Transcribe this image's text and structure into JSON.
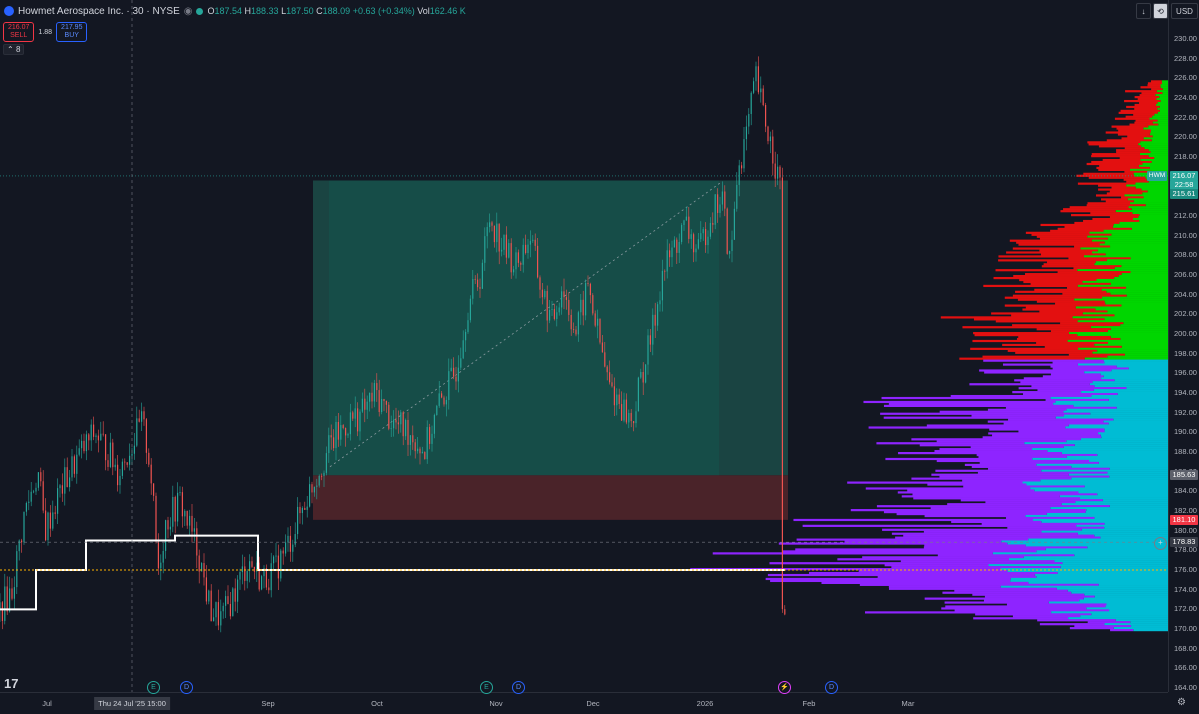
{
  "header": {
    "symbol_title": "Howmet Aerospace Inc. · 30 · NYSE",
    "ohlc": [
      {
        "k": "O",
        "v": "187.54"
      },
      {
        "k": "H",
        "v": "188.33"
      },
      {
        "k": "L",
        "v": "187.50"
      },
      {
        "k": "C",
        "v": "188.09"
      },
      {
        "k": "",
        "v": "+0.63 (+0.34%)"
      },
      {
        "k": "Vol",
        "v": "162.46 K"
      }
    ]
  },
  "trade": {
    "sell_price": "216.07",
    "sell_label": "SELL",
    "spread": "1.88",
    "buy_price": "217.95",
    "buy_label": "BUY"
  },
  "indicator_counter": "8",
  "top_right": {
    "currency": "USD"
  },
  "price_axis": {
    "ticks": [
      "230.00",
      "228.00",
      "226.00",
      "224.00",
      "222.00",
      "220.00",
      "218.00",
      "216.00",
      "214.00",
      "212.00",
      "210.00",
      "208.00",
      "206.00",
      "204.00",
      "202.00",
      "200.00",
      "198.00",
      "196.00",
      "194.00",
      "192.00",
      "190.00",
      "188.00",
      "186.00",
      "184.00",
      "182.00",
      "180.00",
      "178.00",
      "176.00",
      "174.00",
      "172.00",
      "170.00",
      "168.00",
      "166.00",
      "164.00"
    ],
    "symbol_badge": "HWM",
    "last_price": "216.07",
    "countdown": "22:58",
    "target_price": "215.61",
    "entry_price": "185.63",
    "stop_price": "181.10",
    "crosshair_price": "178.83"
  },
  "time_axis": {
    "labels": [
      "Jul",
      "Sep",
      "Oct",
      "Nov",
      "Dec",
      "2026",
      "Feb",
      "Mar"
    ],
    "crosshair_time": "Thu 24 Jul '25   15:00"
  },
  "events": [
    {
      "t": "E",
      "icon": "earnings-icon"
    },
    {
      "t": "D",
      "icon": "dividend-icon"
    },
    {
      "t": "E",
      "icon": "earnings-icon"
    },
    {
      "t": "D",
      "icon": "dividend-icon"
    },
    {
      "t": "⚡",
      "icon": "split-icon"
    },
    {
      "t": "D",
      "icon": "dividend-icon"
    }
  ],
  "colors": {
    "bg": "#131722",
    "up": "#26a69a",
    "down": "#ef5350",
    "profit_zone": "#1b4a45",
    "loss_zone": "#4a2329",
    "vp_up": "#00bcd4",
    "vp_down": "#8e24ff",
    "vp_up2": "#00d600",
    "vp_down2": "#e31010",
    "poc": "#ffb300"
  },
  "chart_data": {
    "type": "candlestick",
    "ylim": [
      163,
      231
    ],
    "x_months": [
      "Jul",
      "Sep",
      "Oct",
      "Nov",
      "Dec",
      "2026",
      "Feb",
      "Mar"
    ],
    "price_path": [
      [
        0,
        172
      ],
      [
        12,
        174
      ],
      [
        25,
        182
      ],
      [
        38,
        186
      ],
      [
        45,
        180
      ],
      [
        60,
        184
      ],
      [
        75,
        187
      ],
      [
        95,
        190
      ],
      [
        108,
        188
      ],
      [
        118,
        186
      ],
      [
        128,
        188
      ],
      [
        142,
        191
      ],
      [
        150,
        187
      ],
      [
        158,
        176
      ],
      [
        166,
        181
      ],
      [
        180,
        183
      ],
      [
        198,
        178
      ],
      [
        210,
        172
      ],
      [
        222,
        171
      ],
      [
        236,
        174
      ],
      [
        248,
        177
      ],
      [
        262,
        175
      ],
      [
        275,
        176
      ],
      [
        290,
        179
      ],
      [
        305,
        183
      ],
      [
        318,
        186
      ],
      [
        332,
        189
      ],
      [
        348,
        191
      ],
      [
        362,
        192
      ],
      [
        376,
        194
      ],
      [
        392,
        191
      ],
      [
        410,
        190
      ],
      [
        424,
        188
      ],
      [
        440,
        193
      ],
      [
        455,
        196
      ],
      [
        468,
        203
      ],
      [
        480,
        206
      ],
      [
        490,
        212
      ],
      [
        502,
        209
      ],
      [
        516,
        207
      ],
      [
        530,
        210
      ],
      [
        540,
        205
      ],
      [
        552,
        201
      ],
      [
        562,
        205
      ],
      [
        576,
        200
      ],
      [
        588,
        205
      ],
      [
        598,
        200
      ],
      [
        608,
        195
      ],
      [
        620,
        193
      ],
      [
        632,
        191
      ],
      [
        642,
        196
      ],
      [
        652,
        200
      ],
      [
        662,
        206
      ],
      [
        675,
        209
      ],
      [
        686,
        211
      ],
      [
        698,
        208
      ],
      [
        710,
        212
      ],
      [
        722,
        214
      ],
      [
        730,
        207
      ],
      [
        738,
        217
      ],
      [
        746,
        220
      ],
      [
        756,
        226
      ],
      [
        764,
        222
      ],
      [
        772,
        219
      ],
      [
        780,
        215
      ]
    ],
    "position": {
      "entry": 185.63,
      "target": 215.61,
      "stop": 181.1,
      "x_start": 313,
      "x_end": 788
    },
    "poc": 176.0,
    "volume_profile_levels": [
      {
        "price": 226,
        "up": 5,
        "down": 18
      },
      {
        "price": 222,
        "up": 15,
        "down": 30
      },
      {
        "price": 218,
        "up": 25,
        "down": 40
      },
      {
        "price": 214,
        "up": 35,
        "down": 45
      },
      {
        "price": 210,
        "up": 60,
        "down": 55
      },
      {
        "price": 206,
        "up": 65,
        "down": 85
      },
      {
        "price": 203,
        "up": 70,
        "down": 95
      },
      {
        "price": 200,
        "up": 72,
        "down": 85
      },
      {
        "price": 196,
        "up": 65,
        "down": 90
      },
      {
        "price": 192,
        "up": 95,
        "down": 145
      },
      {
        "price": 188,
        "up": 110,
        "down": 120
      },
      {
        "price": 184,
        "up": 100,
        "down": 140
      },
      {
        "price": 180,
        "up": 115,
        "down": 190
      },
      {
        "price": 176,
        "up": 130,
        "down": 210
      },
      {
        "price": 172,
        "up": 95,
        "down": 140
      },
      {
        "price": 170,
        "up": 40,
        "down": 20
      }
    ],
    "title": "Howmet Aerospace Inc. · 30 · NYSE"
  }
}
